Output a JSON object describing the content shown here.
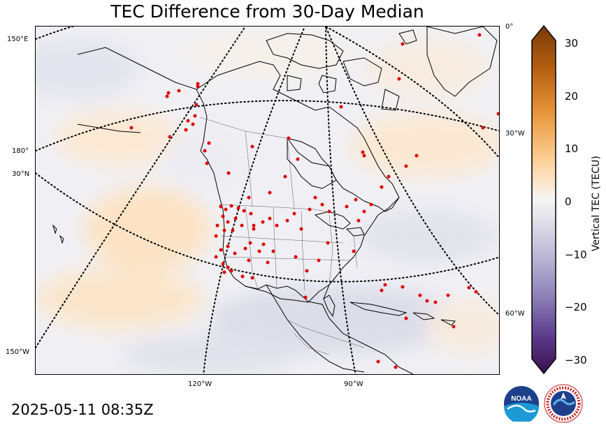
{
  "title": "TEC Difference from 30-Day Median",
  "timestamp": "2025-05-11 08:35Z",
  "grid_labels": {
    "lat_150e": "150°E",
    "lon_180": "180°",
    "lat_30n": "30°N",
    "lon_150w": "150°W",
    "lon_120w": "120°W",
    "lon_90w": "90°W",
    "lon_0": "0°",
    "lon_30w": "30°W",
    "lon_60w": "60°W"
  },
  "colorbar": {
    "label": "Vertical TEC (TECU)",
    "ticks": [
      "30",
      "20",
      "10",
      "0",
      "−10",
      "−20",
      "−30"
    ],
    "range": [
      -30,
      30
    ],
    "extend": "both",
    "low_color": "#3b0f4f",
    "mid_color": "#f4f4f4",
    "high_color": "#7a3b07"
  },
  "logos": {
    "noaa": "NOAA",
    "nws": "NATIONAL WEATHER SERVICE"
  },
  "icons": {
    "station-marker": "red-dot",
    "noaa-logo": "noaa-logo-icon",
    "nws-logo": "nws-logo-icon"
  }
}
